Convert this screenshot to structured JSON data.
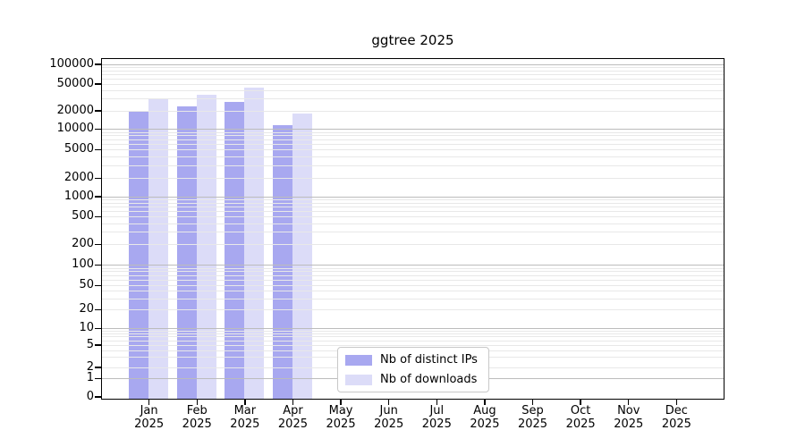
{
  "chart_data": {
    "type": "bar",
    "title": "ggtree 2025",
    "categories": [
      "Jan",
      "Feb",
      "Mar",
      "Apr",
      "May",
      "Jun",
      "Jul",
      "Aug",
      "Sep",
      "Oct",
      "Nov",
      "Dec"
    ],
    "category_year": "2025",
    "series": [
      {
        "name": "Nb of distinct IPs",
        "color": "#a8a8f0",
        "values": [
          20000,
          23000,
          27000,
          11600,
          null,
          null,
          null,
          null,
          null,
          null,
          null,
          null
        ]
      },
      {
        "name": "Nb of downloads",
        "color": "#dcdcf8",
        "values": [
          30000,
          35000,
          44000,
          18000,
          null,
          null,
          null,
          null,
          null,
          null,
          null,
          null
        ]
      }
    ],
    "xlabel": "",
    "ylabel": "",
    "y_ticks": [
      0,
      1,
      2,
      5,
      10,
      20,
      50,
      100,
      200,
      500,
      1000,
      2000,
      5000,
      10000,
      20000,
      50000,
      100000
    ],
    "yscale": "log-like with 0 baseline",
    "ylim": [
      0,
      130000
    ],
    "grid": "horizontal, major on powers of 10, minor on 2-9 multiples",
    "legend_position": "lower center inside plot"
  },
  "colors": {
    "distinct_ips": "#a8a8f0",
    "downloads": "#dcdcf8",
    "major_grid": "#bcbcbc",
    "minor_grid": "#e8e8e8",
    "spine": "#000000",
    "text": "#000000",
    "legend_border": "#c8c8c8",
    "background": "#ffffff"
  }
}
